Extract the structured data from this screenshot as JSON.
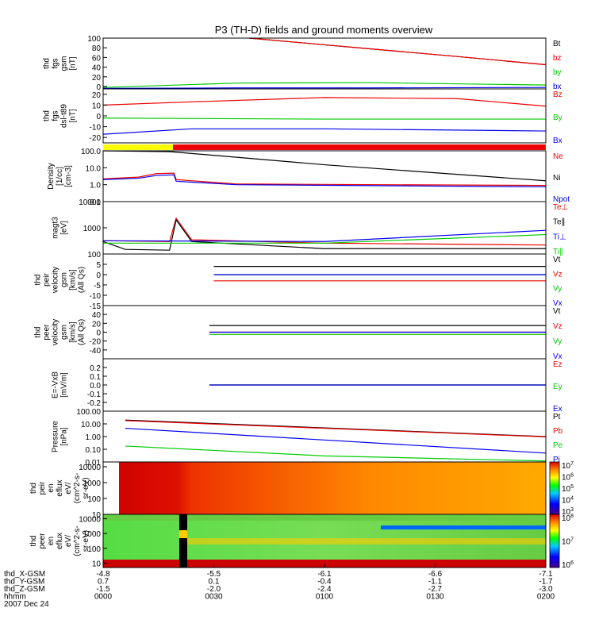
{
  "title": "P3 (TH-D) fields and ground moments overview",
  "colors": {
    "black": "#000000",
    "red": "#ee0000",
    "green": "#00cc00",
    "blue": "#0000ee",
    "yellow": "#ffff00"
  },
  "time_axis": {
    "rows": [
      {
        "label": "thd_X-GSM",
        "values": [
          "-4.8",
          "-5.5",
          "-6.1",
          "-6.6",
          "-7.1"
        ]
      },
      {
        "label": "thd_Y-GSM",
        "values": [
          "0.7",
          "0.1",
          "-0.4",
          "-1.1",
          "-1.7"
        ]
      },
      {
        "label": "thd_Z-GSM",
        "values": [
          "-1.5",
          "-2.0",
          "-2.4",
          "-2.7",
          "-3.0"
        ]
      },
      {
        "label": "hhmm",
        "values": [
          "0000",
          "0030",
          "0100",
          "0130",
          "0200"
        ]
      }
    ],
    "date": "2007 Dec 24"
  },
  "chart_data": [
    {
      "type": "line",
      "id": "fgs_gsm",
      "ylabel": [
        "thd",
        "fgs",
        "gsm",
        "[nT]"
      ],
      "ylim": [
        -5,
        100
      ],
      "yticks": [
        "0",
        "20",
        "40",
        "60",
        "80",
        "100"
      ],
      "legend": [
        {
          "name": "Bt",
          "color": "black"
        },
        {
          "name": "bz",
          "color": "red"
        },
        {
          "name": "by",
          "color": "green"
        },
        {
          "name": "bx",
          "color": "blue"
        }
      ],
      "series": [
        {
          "name": "Bt",
          "color": "black",
          "x": [
            0.33,
            0.6,
            0.8,
            1.0
          ],
          "y": [
            100,
            78,
            62,
            45
          ]
        },
        {
          "name": "bz",
          "color": "red",
          "x": [
            0.33,
            0.6,
            0.8,
            1.0
          ],
          "y": [
            100,
            78,
            62,
            45
          ]
        },
        {
          "name": "by",
          "color": "green",
          "x": [
            0,
            0.3,
            0.6,
            1.0
          ],
          "y": [
            -2,
            7,
            8,
            3
          ]
        },
        {
          "name": "bx",
          "color": "blue",
          "x": [
            0,
            0.3,
            0.6,
            1.0
          ],
          "y": [
            -4,
            -3,
            -3,
            -2
          ]
        }
      ]
    },
    {
      "type": "line",
      "id": "fgs_dsl",
      "ylabel": [
        "thd",
        "fgs",
        "dsl-t89",
        "[nT]"
      ],
      "ylim": [
        -25,
        25
      ],
      "yticks": [
        "-20",
        "-10",
        "0",
        "10",
        "20"
      ],
      "legend": [
        {
          "name": "Bz",
          "color": "red"
        },
        {
          "name": "By",
          "color": "green"
        },
        {
          "name": "Bx",
          "color": "blue"
        }
      ],
      "series": [
        {
          "name": "Bz",
          "color": "red",
          "x": [
            0,
            0.2,
            0.5,
            0.8,
            1.0
          ],
          "y": [
            10,
            13,
            17,
            16,
            9
          ]
        },
        {
          "name": "By",
          "color": "green",
          "x": [
            0,
            0.5,
            1.0
          ],
          "y": [
            -2,
            -3,
            -3
          ]
        },
        {
          "name": "Bx",
          "color": "blue",
          "x": [
            0,
            0.2,
            0.5,
            1.0
          ],
          "y": [
            -17,
            -12,
            -12,
            -14
          ]
        }
      ]
    },
    {
      "type": "line",
      "id": "density",
      "ylabel": [
        "Density",
        "[1/cc]",
        "[cm-3]"
      ],
      "ylim": [
        0.1,
        100
      ],
      "log": true,
      "yticks": [
        "0.1",
        "1.0",
        "10.0",
        "100.0"
      ],
      "legend": [
        {
          "name": "Ne",
          "color": "red"
        },
        {
          "name": "Ni",
          "color": "black"
        },
        {
          "name": "Npot",
          "color": "blue"
        }
      ],
      "series": [
        {
          "name": "Ni",
          "color": "black",
          "x": [
            0,
            0.15,
            0.5,
            1.0
          ],
          "y": [
            100,
            90,
            15,
            1.7
          ]
        },
        {
          "name": "Ne",
          "color": "red",
          "x": [
            0,
            0.08,
            0.12,
            0.16,
            0.165,
            0.3,
            1.0
          ],
          "y": [
            2.2,
            2.8,
            4.5,
            4.8,
            2.0,
            1.1,
            0.9
          ]
        },
        {
          "name": "Npot",
          "color": "blue",
          "x": [
            0,
            0.08,
            0.12,
            0.16,
            0.165,
            0.3,
            1.0
          ],
          "y": [
            2.0,
            2.4,
            3.5,
            3.8,
            1.6,
            1.0,
            0.75
          ]
        }
      ]
    },
    {
      "type": "line",
      "id": "temperature",
      "ylabel": [
        "magt3",
        "[eV]"
      ],
      "ylim": [
        100,
        10000
      ],
      "log": true,
      "yticks": [
        "100",
        "1000",
        "10000"
      ],
      "legend": [
        {
          "name": "Te⊥",
          "color": "red"
        },
        {
          "name": "Te∥",
          "color": "black"
        },
        {
          "name": "Ti⊥",
          "color": "blue"
        },
        {
          "name": "Ti∥",
          "color": "green"
        }
      ],
      "series": [
        {
          "name": "Te⊥",
          "color": "red",
          "x": [
            0,
            0.15,
            0.165,
            0.2,
            0.5,
            1.0
          ],
          "y": [
            320,
            300,
            2300,
            350,
            260,
            220
          ]
        },
        {
          "name": "Te∥",
          "color": "black",
          "x": [
            0,
            0.05,
            0.15,
            0.165,
            0.2,
            0.5,
            1.0
          ],
          "y": [
            300,
            150,
            140,
            2000,
            300,
            160,
            160
          ]
        },
        {
          "name": "Ti⊥",
          "color": "blue",
          "x": [
            0,
            0.5,
            1.0
          ],
          "y": [
            320,
            300,
            800
          ]
        },
        {
          "name": "Ti∥",
          "color": "green",
          "x": [
            0,
            0.5,
            1.0
          ],
          "y": [
            260,
            260,
            550
          ]
        }
      ]
    },
    {
      "type": "line",
      "id": "peir_velocity",
      "ylabel": [
        "thd",
        "peir",
        "velocity",
        "gsm",
        "[km/s]",
        "(All Qs)"
      ],
      "ylim": [
        -15,
        10
      ],
      "yticks": [
        "-15",
        "-10",
        "-5",
        "0",
        "5"
      ],
      "legend": [
        {
          "name": "Vt",
          "color": "black"
        },
        {
          "name": "Vz",
          "color": "red"
        },
        {
          "name": "Vy",
          "color": "green"
        },
        {
          "name": "Vx",
          "color": "blue"
        }
      ],
      "series": [
        {
          "name": "Vt",
          "color": "black",
          "x": [
            0.25,
            1.0
          ],
          "y": [
            4,
            4
          ]
        },
        {
          "name": "Vz",
          "color": "red",
          "x": [
            0.25,
            1.0
          ],
          "y": [
            -3,
            -3
          ]
        },
        {
          "name": "Vy",
          "color": "green",
          "x": [
            0.25,
            1.0
          ],
          "y": [
            0,
            0
          ]
        },
        {
          "name": "Vx",
          "color": "blue",
          "x": [
            0.25,
            1.0
          ],
          "y": [
            0,
            0
          ]
        }
      ]
    },
    {
      "type": "line",
      "id": "peer_velocity",
      "ylabel": [
        "thd",
        "peer",
        "velocity",
        "gsm",
        "[km/s]",
        "(All Qs)"
      ],
      "ylim": [
        -60,
        60
      ],
      "yticks": [
        "-40",
        "-20",
        "0",
        "20",
        "40"
      ],
      "legend": [
        {
          "name": "Vt",
          "color": "black"
        },
        {
          "name": "Vz",
          "color": "red"
        },
        {
          "name": "Vy",
          "color": "green"
        },
        {
          "name": "Vx",
          "color": "blue"
        }
      ],
      "series": [
        {
          "name": "Vt",
          "color": "black",
          "x": [
            0.24,
            1.0
          ],
          "y": [
            15,
            15
          ]
        },
        {
          "name": "Vz",
          "color": "red",
          "x": [
            0.24,
            1.0
          ],
          "y": [
            0,
            0
          ]
        },
        {
          "name": "Vy",
          "color": "green",
          "x": [
            0.24,
            1.0
          ],
          "y": [
            -5,
            -5
          ]
        },
        {
          "name": "Vx",
          "color": "blue",
          "x": [
            0.24,
            1.0
          ],
          "y": [
            0,
            0
          ]
        }
      ]
    },
    {
      "type": "line",
      "id": "efield",
      "ylabel": [
        "E=-VxB",
        "[mV/m]"
      ],
      "ylim": [
        -0.3,
        0.3
      ],
      "yticks": [
        "-0.2",
        "-0.1",
        "0.0",
        "0.1",
        "0.2"
      ],
      "legend": [
        {
          "name": "Ez",
          "color": "red"
        },
        {
          "name": "Ey",
          "color": "green"
        },
        {
          "name": "Ex",
          "color": "blue"
        }
      ],
      "series": [
        {
          "name": "Ez",
          "color": "red",
          "x": [
            0.24,
            1.0
          ],
          "y": [
            0,
            0
          ]
        },
        {
          "name": "Ey",
          "color": "green",
          "x": [
            0.24,
            1.0
          ],
          "y": [
            0,
            0
          ]
        },
        {
          "name": "Ex",
          "color": "blue",
          "x": [
            0.24,
            1.0
          ],
          "y": [
            0,
            0
          ]
        }
      ]
    },
    {
      "type": "line",
      "id": "pressure",
      "ylabel": [
        "Pressure",
        "[nPa]"
      ],
      "ylim": [
        0.01,
        100
      ],
      "log": true,
      "yticks": [
        "0.01",
        "0.10",
        "1.00",
        "10.00",
        "100.00"
      ],
      "legend": [
        {
          "name": "Pt",
          "color": "black"
        },
        {
          "name": "Pb",
          "color": "red"
        },
        {
          "name": "Pe",
          "color": "green"
        },
        {
          "name": "Pi",
          "color": "blue"
        }
      ],
      "series": [
        {
          "name": "Pt",
          "color": "black",
          "x": [
            0.05,
            1.0
          ],
          "y": [
            20,
            1.0
          ]
        },
        {
          "name": "Pb",
          "color": "red",
          "x": [
            0.05,
            1.0
          ],
          "y": [
            18,
            0.95
          ]
        },
        {
          "name": "Pi",
          "color": "blue",
          "x": [
            0.05,
            1.0
          ],
          "y": [
            4.5,
            0.05
          ]
        },
        {
          "name": "Pe",
          "color": "green",
          "x": [
            0.05,
            0.5,
            1.0
          ],
          "y": [
            0.18,
            0.03,
            0.012
          ]
        }
      ]
    },
    {
      "type": "heatmap",
      "id": "peir_spec",
      "ylabel": [
        "thd",
        "peir",
        "en",
        "eflux",
        "eV/",
        "(cm^2-s-",
        "sr-eV)"
      ],
      "ylim": [
        10,
        20000
      ],
      "log": true,
      "yticks": [
        "10",
        "100",
        "1000",
        "10000"
      ],
      "colorbar_ticks": [
        "10^3",
        "10^4",
        "10^5",
        "10^6",
        "10^7"
      ]
    },
    {
      "type": "heatmap",
      "id": "peer_spec",
      "ylabel": [
        "thd",
        "peer",
        "en",
        "eflux",
        "eV/",
        "(cm^2-s-",
        "sr-eV)"
      ],
      "ylim": [
        5,
        20000
      ],
      "log": true,
      "yticks": [
        "10",
        "100",
        "1000",
        "10000"
      ],
      "colorbar_ticks": [
        "10^6",
        "10^7",
        "10^8"
      ]
    }
  ]
}
